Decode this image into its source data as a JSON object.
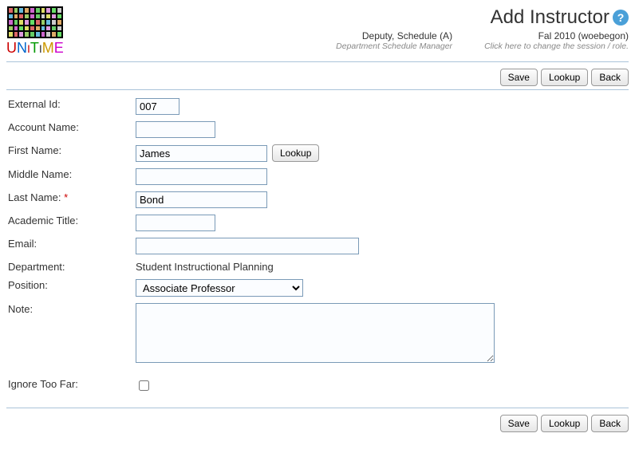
{
  "header": {
    "logo_text": "UniTime",
    "page_title": "Add Instructor",
    "help_glyph": "?",
    "session": {
      "user_name": "Deputy, Schedule (A)",
      "user_role": "Department Schedule Manager",
      "term": "Fal 2010 (woebegon)",
      "term_sub": "Click here to change the session / role."
    },
    "logo_colors": [
      "#d66",
      "#9c6",
      "#6bd",
      "#da6",
      "#c6c",
      "#6c6",
      "#dd6",
      "#d9d",
      "#6d6",
      "#ccc",
      "#6bd",
      "#da6",
      "#d66",
      "#9c6",
      "#c6c",
      "#6c6",
      "#ccc",
      "#dd6",
      "#d9d",
      "#6d6",
      "#c6c",
      "#6c6",
      "#dd6",
      "#d9d",
      "#6d6",
      "#d66",
      "#9c6",
      "#6bd",
      "#ccc",
      "#da6",
      "#9c6",
      "#c6c",
      "#6d6",
      "#dd6",
      "#d66",
      "#da6",
      "#6bd",
      "#d9d",
      "#6c6",
      "#ccc",
      "#dd6",
      "#d66",
      "#d9d",
      "#9c6",
      "#6c6",
      "#6bd",
      "#c6c",
      "#ccc",
      "#da6",
      "#6d6"
    ]
  },
  "toolbar": {
    "save": "Save",
    "lookup": "Lookup",
    "back": "Back"
  },
  "form": {
    "labels": {
      "external_id": "External Id:",
      "account_name": "Account Name:",
      "first_name": "First Name:",
      "middle_name": "Middle Name:",
      "last_name": "Last Name:",
      "academic_title": "Academic Title:",
      "email": "Email:",
      "department": "Department:",
      "position": "Position:",
      "note": "Note:",
      "ignore_too_far": "Ignore Too Far:"
    },
    "values": {
      "external_id": "007",
      "account_name": "",
      "first_name": "James",
      "middle_name": "",
      "last_name": "Bond",
      "academic_title": "",
      "email": "",
      "department_text": "Student Instructional Planning",
      "position_selected": "Associate Professor",
      "note": "",
      "ignore_too_far": false
    },
    "first_name_lookup": "Lookup"
  }
}
